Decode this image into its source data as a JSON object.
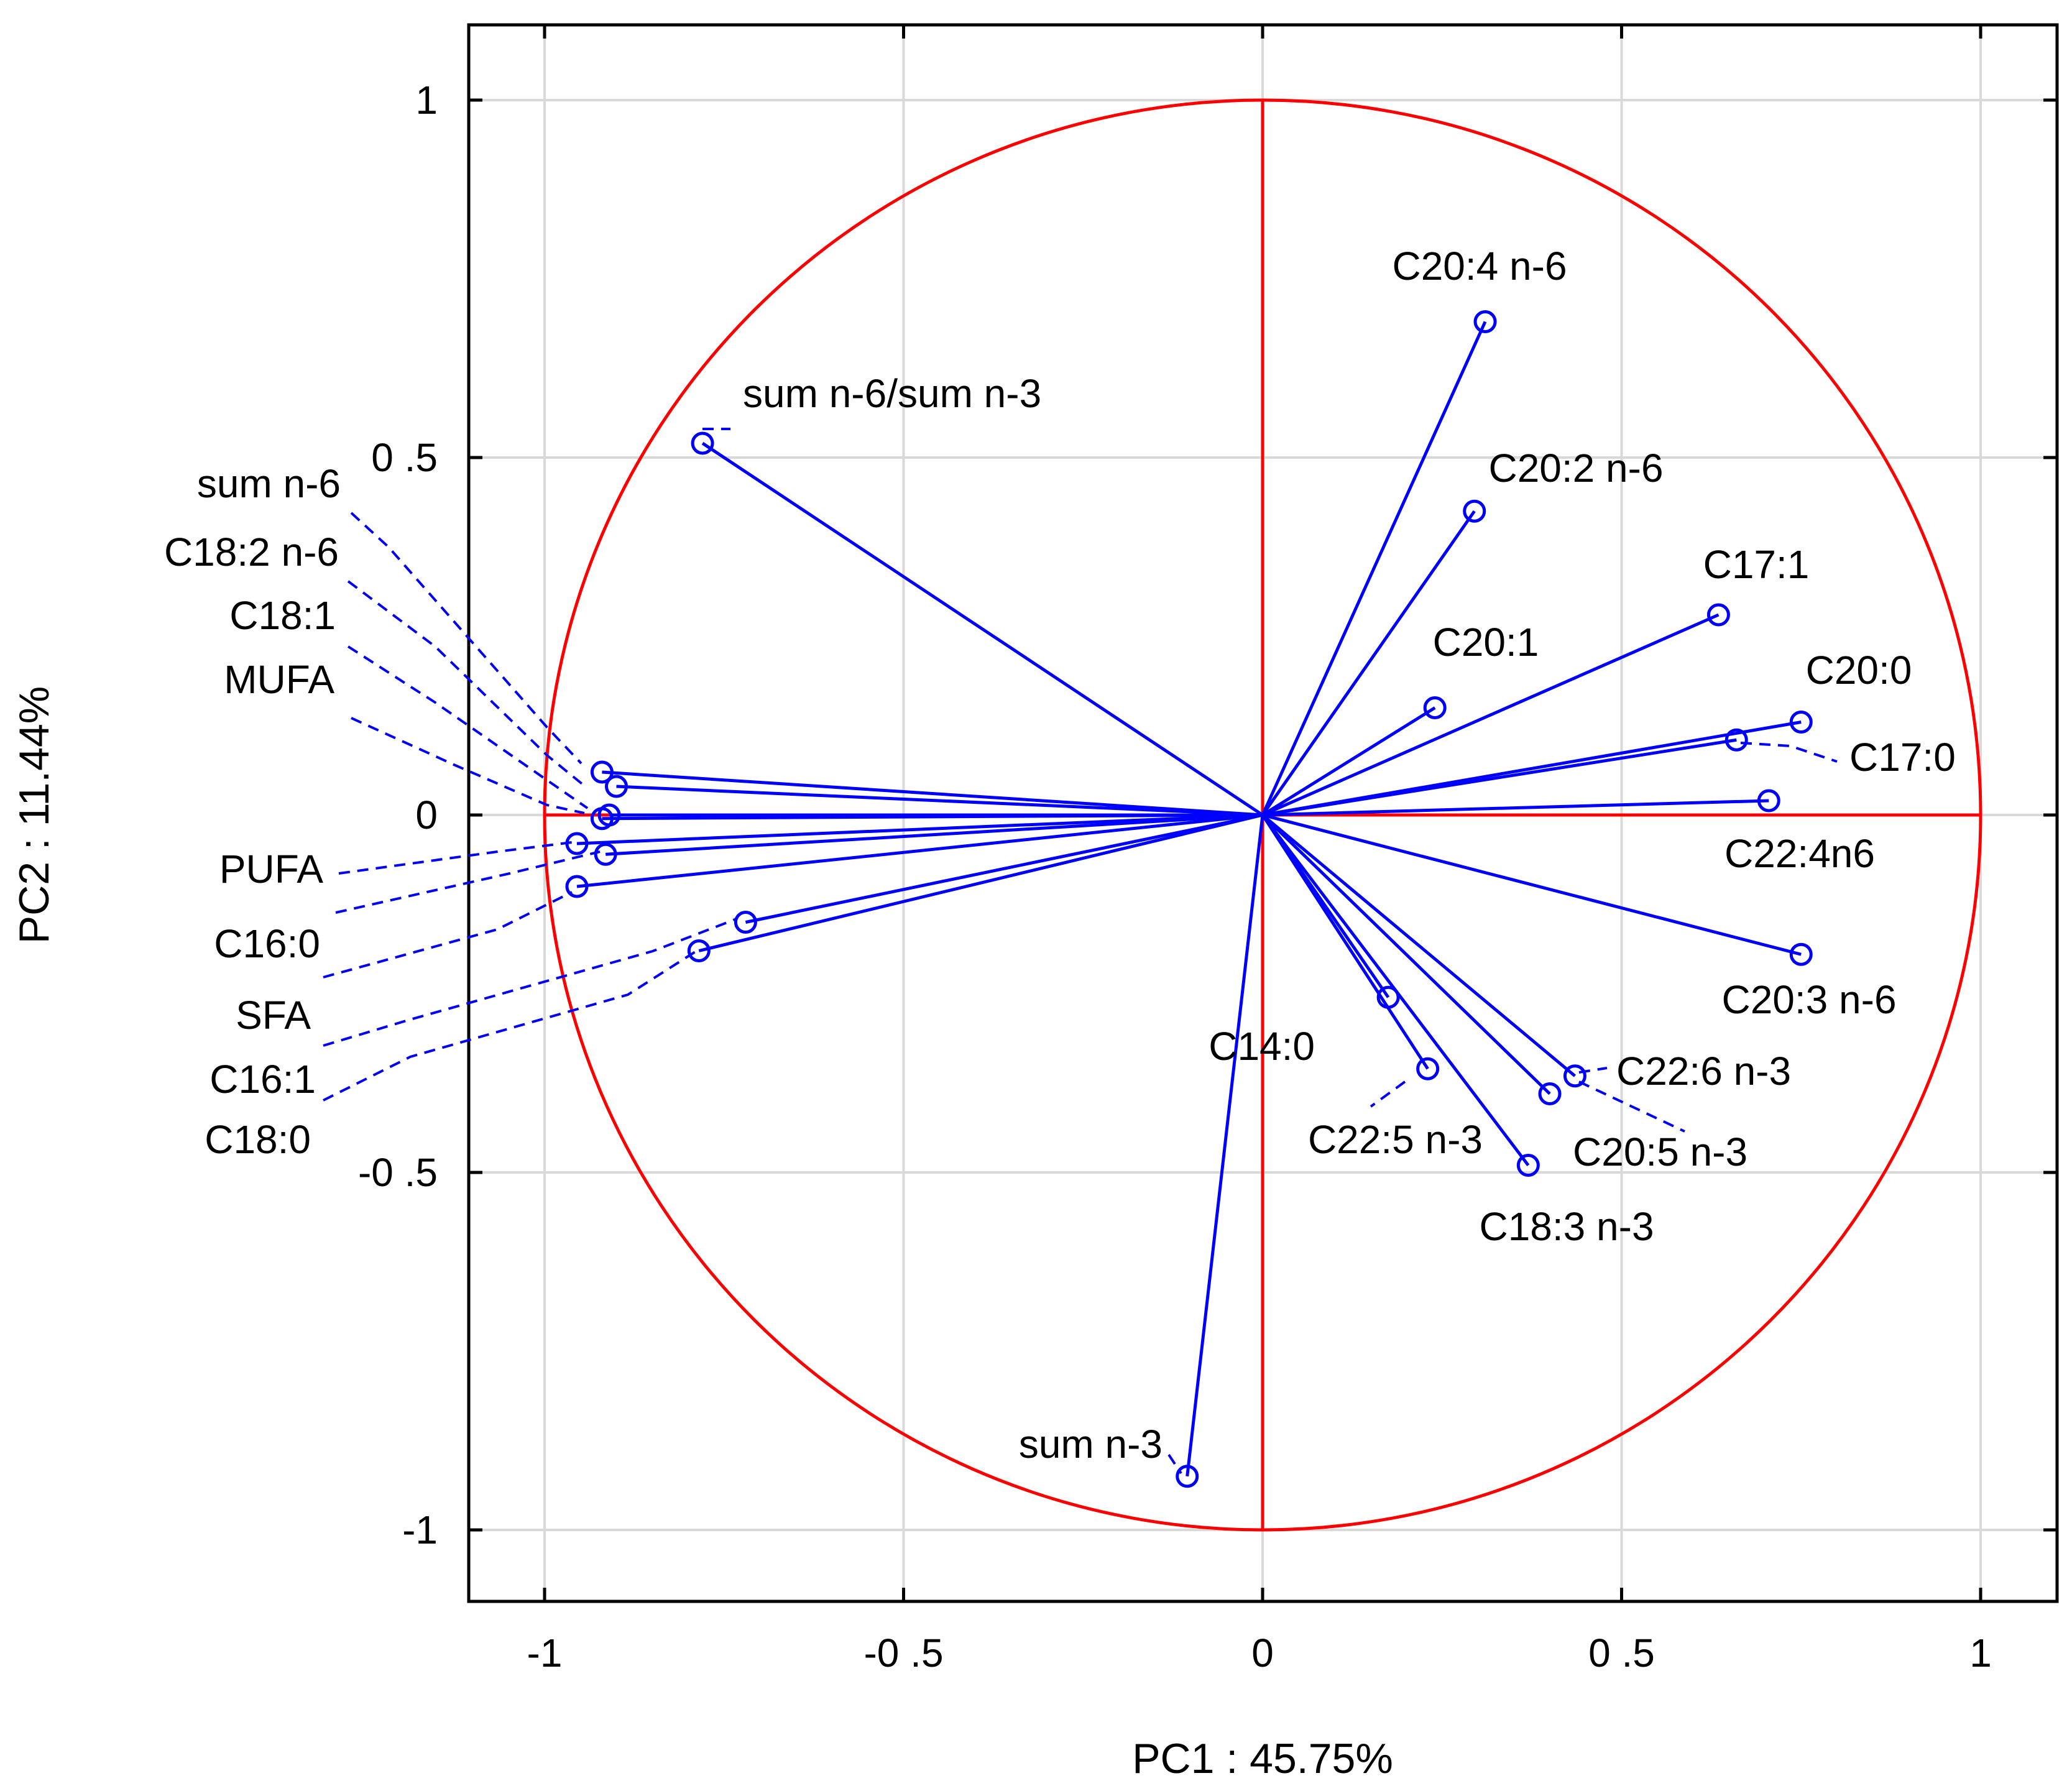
{
  "chart_data": {
    "type": "scatter",
    "subtype": "pca-correlation-circle",
    "xlabel": "PC1 : 45.75%",
    "ylabel": "PC2 : 11.44%",
    "xlim": [
      -1.1,
      1.1
    ],
    "ylim": [
      -1.1,
      1.1
    ],
    "xticks": [
      -1,
      -0.5,
      0,
      0.5,
      1
    ],
    "yticks": [
      -1,
      -0.5,
      0,
      0.5,
      1
    ],
    "xtick_labels": [
      "-1",
      "-0 .5",
      "0",
      "0 .5",
      "1"
    ],
    "ytick_labels": [
      "-1",
      "-0 .5",
      "0",
      "0 .5",
      "1"
    ],
    "grid": true,
    "circle_radius": 1,
    "colors": {
      "circle": "#ff0000",
      "vectors": "#0000ff",
      "grid": "#d9d9d9",
      "frame": "#000000"
    },
    "variables": [
      {
        "name": "C20:4 n-6",
        "x": 0.31,
        "y": 0.69
      },
      {
        "name": "sum n-6/sum n-3",
        "x": -0.78,
        "y": 0.52
      },
      {
        "name": "C20:2 n-6",
        "x": 0.295,
        "y": 0.425
      },
      {
        "name": "C17:1",
        "x": 0.635,
        "y": 0.28
      },
      {
        "name": "C20:1",
        "x": 0.24,
        "y": 0.15
      },
      {
        "name": "C20:0",
        "x": 0.75,
        "y": 0.13
      },
      {
        "name": "C17:0",
        "x": 0.66,
        "y": 0.105
      },
      {
        "name": "C22:4n6",
        "x": 0.705,
        "y": 0.02
      },
      {
        "name": "C20:3 n-6",
        "x": 0.75,
        "y": -0.195
      },
      {
        "name": "C14:0",
        "x": 0.175,
        "y": -0.255
      },
      {
        "name": "C22:5 n-3",
        "x": 0.23,
        "y": -0.355
      },
      {
        "name": "C22:6 n-3",
        "x": 0.435,
        "y": -0.365
      },
      {
        "name": "C20:5 n-3",
        "x": 0.4,
        "y": -0.39
      },
      {
        "name": "C18:3 n-3",
        "x": 0.37,
        "y": -0.49
      },
      {
        "name": "sum n-3",
        "x": -0.105,
        "y": -0.925
      },
      {
        "name": "sum n-6",
        "x": -0.92,
        "y": 0.06
      },
      {
        "name": "C18:2 n-6",
        "x": -0.9,
        "y": 0.04
      },
      {
        "name": "C18:1",
        "x": -0.91,
        "y": 0.0
      },
      {
        "name": "MUFA",
        "x": -0.92,
        "y": -0.005
      },
      {
        "name": "PUFA",
        "x": -0.955,
        "y": -0.04
      },
      {
        "name": "C16:0",
        "x": -0.915,
        "y": -0.055
      },
      {
        "name": "SFA",
        "x": -0.955,
        "y": -0.1
      },
      {
        "name": "C16:1",
        "x": -0.72,
        "y": -0.15
      },
      {
        "name": "C18:0",
        "x": -0.785,
        "y": -0.19
      }
    ]
  }
}
